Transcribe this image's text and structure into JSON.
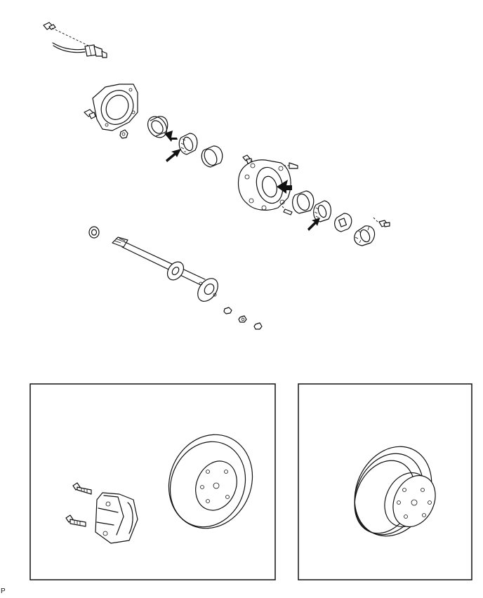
{
  "figure": {
    "corner_label": "P"
  }
}
